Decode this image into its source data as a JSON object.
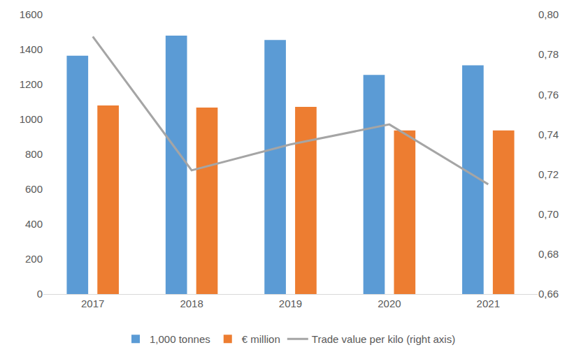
{
  "chart_data": {
    "type": "bar",
    "categories": [
      "2017",
      "2018",
      "2019",
      "2020",
      "2021"
    ],
    "series": [
      {
        "name": "1,000 tonnes",
        "color": "#5b9bd5",
        "type": "bar",
        "values": [
          1365,
          1480,
          1455,
          1255,
          1310
        ]
      },
      {
        "name": "€ million",
        "color": "#ed7d31",
        "type": "bar",
        "values": [
          1080,
          1068,
          1072,
          937,
          937
        ]
      },
      {
        "name": "Trade value per kilo (right axis)",
        "color": "#a5a5a5",
        "type": "line",
        "axis": "y2",
        "values": [
          0.789,
          0.722,
          0.735,
          0.745,
          0.715
        ]
      }
    ],
    "ylim": [
      0,
      1600
    ],
    "yticks": [
      0,
      200,
      400,
      600,
      800,
      1000,
      1200,
      1400,
      1600
    ],
    "y2lim": [
      0.66,
      0.8
    ],
    "y2ticks": [
      {
        "value": 0.66,
        "label": "0,66"
      },
      {
        "value": 0.68,
        "label": "0,68"
      },
      {
        "value": 0.7,
        "label": "0,70"
      },
      {
        "value": 0.72,
        "label": "0,72"
      },
      {
        "value": 0.74,
        "label": "0,74"
      },
      {
        "value": 0.76,
        "label": "0,76"
      },
      {
        "value": 0.78,
        "label": "0,78"
      },
      {
        "value": 0.8,
        "label": "0,80"
      }
    ],
    "grid": false,
    "legend": "bottom"
  }
}
